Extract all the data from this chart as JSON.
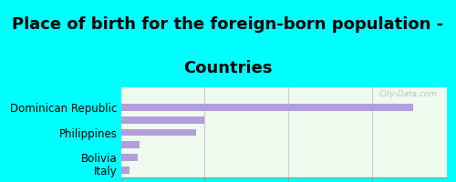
{
  "title_line1": "Place of birth for the foreign-born population -",
  "title_line2": "Countries",
  "title_fontsize": 13,
  "categories": [
    "",
    "Dominican Republic",
    "",
    "Philippines",
    "",
    "Bolivia",
    "Italy"
  ],
  "values": [
    0,
    350,
    100,
    90,
    22,
    20,
    10
  ],
  "bar_color": "#b39ddb",
  "background_color": "#00ffff",
  "chart_bg": "#edfaed",
  "xlim": [
    0,
    390
  ],
  "xticks": [
    0,
    100,
    200,
    300
  ],
  "watermark": "City-Data.com",
  "label_fontsize": 8.5,
  "tick_fontsize": 8.5,
  "bar_height": 0.55
}
